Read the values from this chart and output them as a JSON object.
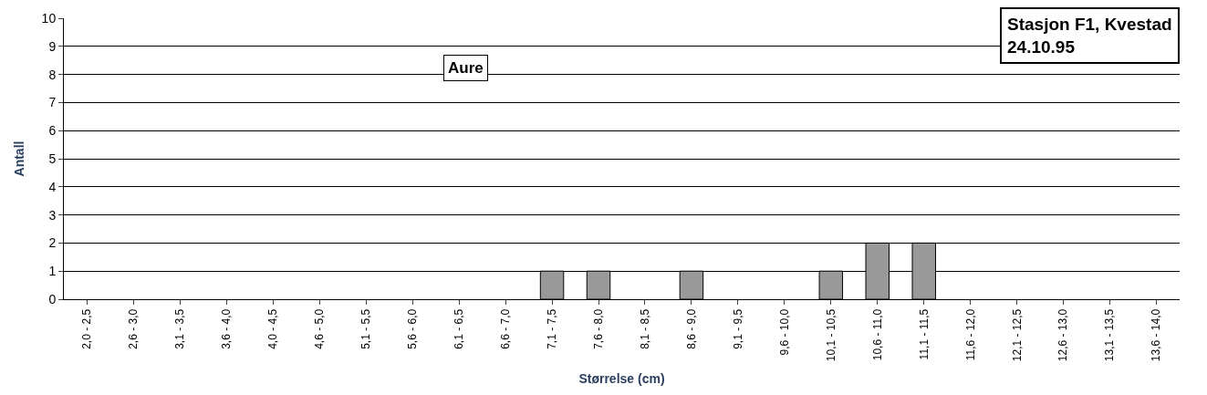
{
  "chart_data": {
    "type": "bar",
    "title": "Aure",
    "subtitle": "Stasjon F1, Kvestad\n24.10.95",
    "xlabel": "Størrelse (cm)",
    "ylabel": "Antall",
    "categories": [
      "2,0 - 2,5",
      "2,6 - 3,0",
      "3,1 - 3,5",
      "3,6 - 4,0",
      "4,0 - 4,5",
      "4,6 - 5,0",
      "5,1 - 5,5",
      "5,6 - 6,0",
      "6,1 - 6,5",
      "6,6 - 7,0",
      "7,1 - 7,5",
      "7,6 - 8,0",
      "8,1 - 8,5",
      "8,6 - 9,0",
      "9,1 - 9,5",
      "9,6 - 10,0",
      "10,1 - 10,5",
      "10,6 - 11,0",
      "11,1 - 11,5",
      "11,6 - 12,0",
      "12,1 - 12,5",
      "12,6 - 13,0",
      "13,1 - 13,5",
      "13,6 - 14,0"
    ],
    "values": [
      0,
      0,
      0,
      0,
      0,
      0,
      0,
      0,
      0,
      0,
      1,
      1,
      0,
      1,
      0,
      0,
      1,
      2,
      2,
      0,
      0,
      0,
      0,
      0
    ],
    "color": "#999999",
    "ylim": [
      0,
      10
    ],
    "yticks": [
      0,
      1,
      2,
      3,
      4,
      5,
      6,
      7,
      8,
      9,
      10
    ],
    "grid": "y"
  }
}
